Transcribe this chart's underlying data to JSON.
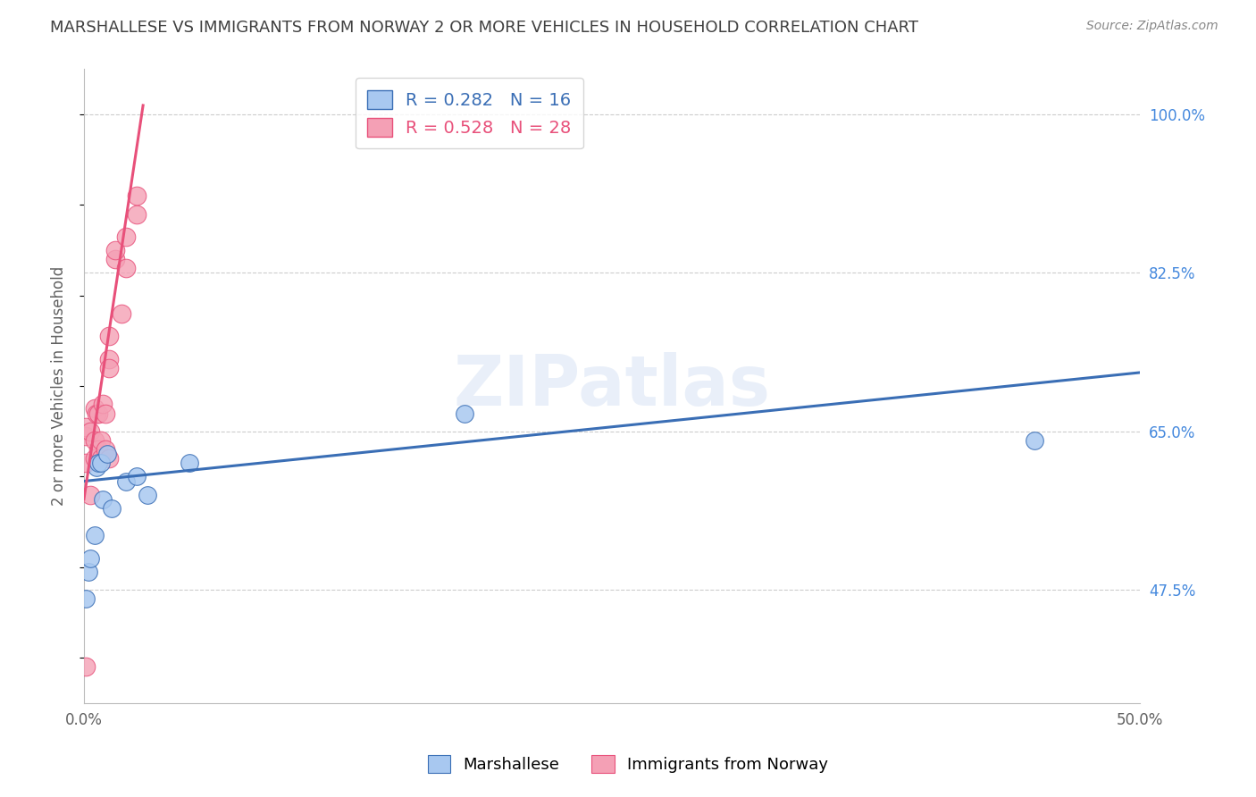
{
  "title": "MARSHALLESE VS IMMIGRANTS FROM NORWAY 2 OR MORE VEHICLES IN HOUSEHOLD CORRELATION CHART",
  "source": "Source: ZipAtlas.com",
  "xlabel": "",
  "ylabel": "2 or more Vehicles in Household",
  "xlim": [
    0.0,
    0.5
  ],
  "ylim": [
    0.35,
    1.05
  ],
  "xticks": [
    0.0,
    0.1,
    0.2,
    0.3,
    0.4,
    0.5
  ],
  "xtick_labels": [
    "0.0%",
    "",
    "",
    "",
    "",
    "50.0%"
  ],
  "ytick_labels_right": [
    "47.5%",
    "65.0%",
    "82.5%",
    "100.0%"
  ],
  "ytick_vals_right": [
    0.475,
    0.65,
    0.825,
    1.0
  ],
  "marshallese_color": "#A8C8F0",
  "norway_color": "#F4A0B5",
  "marshallese_line_color": "#3A6EB5",
  "norway_line_color": "#E8507A",
  "R_marshallese": 0.282,
  "N_marshallese": 16,
  "R_norway": 0.528,
  "N_norway": 28,
  "legend_label_marshallese": "Marshallese",
  "legend_label_norway": "Immigrants from Norway",
  "watermark": "ZIPatlas",
  "marshallese_x": [
    0.001,
    0.002,
    0.003,
    0.005,
    0.006,
    0.007,
    0.008,
    0.009,
    0.011,
    0.013,
    0.02,
    0.025,
    0.03,
    0.05,
    0.18,
    0.45
  ],
  "marshallese_y": [
    0.465,
    0.495,
    0.51,
    0.535,
    0.61,
    0.615,
    0.615,
    0.575,
    0.625,
    0.565,
    0.595,
    0.6,
    0.58,
    0.615,
    0.67,
    0.64
  ],
  "norway_x": [
    0.001,
    0.001,
    0.001,
    0.003,
    0.003,
    0.005,
    0.005,
    0.005,
    0.006,
    0.007,
    0.007,
    0.008,
    0.008,
    0.009,
    0.01,
    0.01,
    0.012,
    0.012,
    0.012,
    0.012,
    0.015,
    0.015,
    0.018,
    0.02,
    0.02,
    0.025,
    0.025,
    0.001
  ],
  "norway_y": [
    0.615,
    0.645,
    0.655,
    0.58,
    0.65,
    0.62,
    0.64,
    0.675,
    0.67,
    0.67,
    0.63,
    0.62,
    0.64,
    0.68,
    0.63,
    0.67,
    0.73,
    0.72,
    0.755,
    0.62,
    0.84,
    0.85,
    0.78,
    0.83,
    0.865,
    0.89,
    0.91,
    0.39
  ],
  "norway_line_x0": 0.0,
  "norway_line_y0": 0.575,
  "norway_line_x1": 0.028,
  "norway_line_y1": 1.01,
  "marshallese_line_x0": 0.0,
  "marshallese_line_y0": 0.595,
  "marshallese_line_x1": 0.5,
  "marshallese_line_y1": 0.715,
  "background_color": "#FFFFFF",
  "grid_color": "#CCCCCC",
  "title_color": "#404040",
  "axis_label_color": "#606060",
  "right_tick_color": "#4488DD"
}
